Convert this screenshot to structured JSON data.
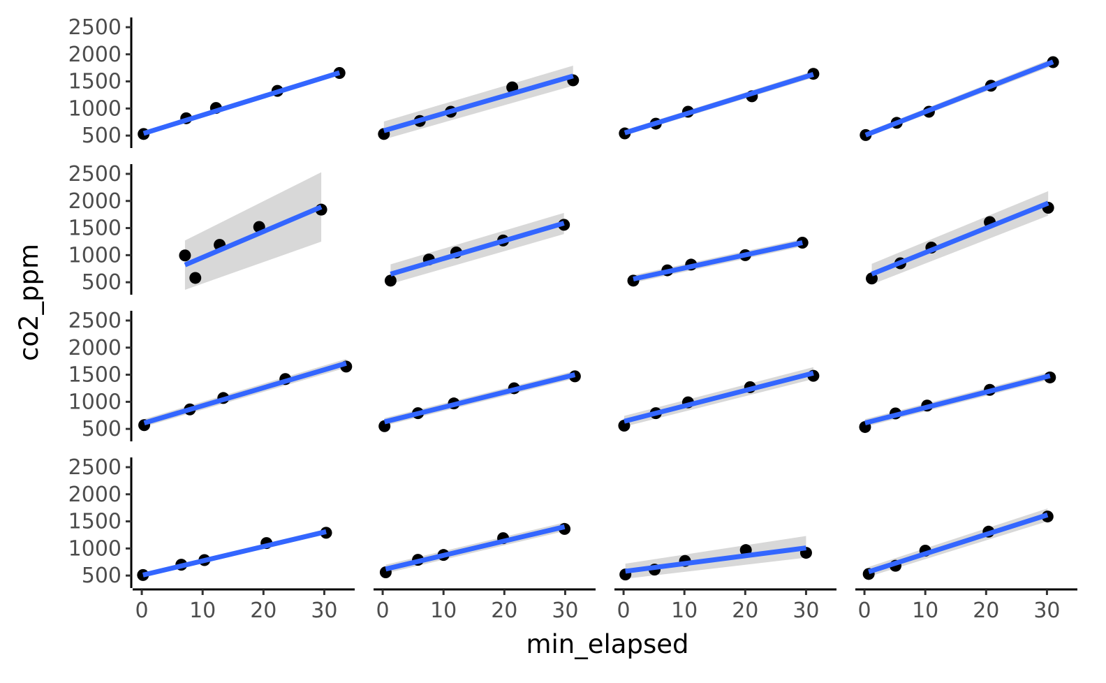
{
  "chart_data": {
    "type": "scatter",
    "layout": "facet-grid",
    "rows": 4,
    "cols": 4,
    "xlabel": "min_elapsed",
    "ylabel": "co2_ppm",
    "xlim": [
      -1.5,
      35
    ],
    "ylim": [
      270,
      2680
    ],
    "x_ticks": [
      0,
      10,
      20,
      30
    ],
    "y_ticks": [
      500,
      1000,
      1500,
      2000,
      2500
    ],
    "grid": false,
    "legend": "none",
    "point_color": "#000000",
    "fit_color": "#3366ff",
    "band_color": "#bebebe",
    "panels": [
      {
        "points": [
          [
            0.3,
            530
          ],
          [
            7.3,
            820
          ],
          [
            12.2,
            1010
          ],
          [
            22.3,
            1325
          ],
          [
            32.5,
            1655
          ]
        ],
        "fit": [
          [
            0.3,
            540
          ],
          [
            32.5,
            1660
          ]
        ],
        "band": [
          [
            0.3,
            510,
            570
          ],
          [
            32.5,
            1620,
            1700
          ]
        ]
      },
      {
        "points": [
          [
            0.2,
            530
          ],
          [
            6.1,
            770
          ],
          [
            11.2,
            940
          ],
          [
            21.3,
            1390
          ],
          [
            31.3,
            1520
          ]
        ],
        "fit": [
          [
            0.2,
            590
          ],
          [
            31.3,
            1600
          ]
        ],
        "band": [
          [
            0.2,
            430,
            760
          ],
          [
            31.3,
            1420,
            1790
          ]
        ]
      },
      {
        "points": [
          [
            0.2,
            540
          ],
          [
            5.3,
            720
          ],
          [
            10.6,
            940
          ],
          [
            21.1,
            1225
          ],
          [
            31.2,
            1640
          ]
        ],
        "fit": [
          [
            0.2,
            550
          ],
          [
            31.2,
            1630
          ]
        ],
        "band": [
          [
            0.2,
            500,
            600
          ],
          [
            31.2,
            1570,
            1690
          ]
        ]
      },
      {
        "points": [
          [
            0.2,
            510
          ],
          [
            5.3,
            735
          ],
          [
            10.6,
            940
          ],
          [
            20.8,
            1420
          ],
          [
            31.0,
            1855
          ]
        ],
        "fit": [
          [
            0.2,
            510
          ],
          [
            31.0,
            1860
          ]
        ],
        "band": [
          [
            0.2,
            460,
            560
          ],
          [
            31.0,
            1790,
            1930
          ]
        ]
      },
      {
        "points": [
          [
            7.1,
            995
          ],
          [
            8.8,
            580
          ],
          [
            12.8,
            1190
          ],
          [
            19.3,
            1520
          ],
          [
            29.5,
            1840
          ]
        ],
        "fit": [
          [
            7.1,
            820
          ],
          [
            29.5,
            1890
          ]
        ],
        "band": [
          [
            7.1,
            360,
            1270
          ],
          [
            29.5,
            1250,
            2530
          ]
        ]
      },
      {
        "points": [
          [
            1.3,
            530
          ],
          [
            7.6,
            920
          ],
          [
            12.1,
            1050
          ],
          [
            19.8,
            1270
          ],
          [
            29.8,
            1560
          ]
        ],
        "fit": [
          [
            1.3,
            650
          ],
          [
            29.8,
            1590
          ]
        ],
        "band": [
          [
            1.3,
            470,
            830
          ],
          [
            29.8,
            1390,
            1780
          ]
        ]
      },
      {
        "points": [
          [
            1.6,
            530
          ],
          [
            7.2,
            720
          ],
          [
            11.1,
            825
          ],
          [
            20.0,
            1000
          ],
          [
            29.4,
            1230
          ]
        ],
        "fit": [
          [
            1.6,
            560
          ],
          [
            29.4,
            1230
          ]
        ],
        "band": [
          [
            1.6,
            490,
            630
          ],
          [
            29.4,
            1160,
            1300
          ]
        ]
      },
      {
        "points": [
          [
            1.2,
            570
          ],
          [
            5.9,
            850
          ],
          [
            11.0,
            1140
          ],
          [
            20.6,
            1610
          ],
          [
            30.2,
            1875
          ]
        ],
        "fit": [
          [
            1.2,
            650
          ],
          [
            30.2,
            1960
          ]
        ],
        "band": [
          [
            1.2,
            460,
            840
          ],
          [
            30.2,
            1730,
            2180
          ]
        ]
      },
      {
        "points": [
          [
            0.4,
            570
          ],
          [
            7.9,
            860
          ],
          [
            13.4,
            1070
          ],
          [
            23.6,
            1420
          ],
          [
            33.6,
            1650
          ]
        ],
        "fit": [
          [
            0.4,
            610
          ],
          [
            33.6,
            1710
          ]
        ],
        "band": [
          [
            0.4,
            540,
            680
          ],
          [
            33.6,
            1630,
            1790
          ]
        ]
      },
      {
        "points": [
          [
            0.3,
            550
          ],
          [
            5.8,
            790
          ],
          [
            11.7,
            970
          ],
          [
            21.6,
            1250
          ],
          [
            31.6,
            1470
          ]
        ],
        "fit": [
          [
            0.3,
            630
          ],
          [
            31.6,
            1500
          ]
        ],
        "band": [
          [
            0.3,
            560,
            700
          ],
          [
            31.6,
            1430,
            1570
          ]
        ]
      },
      {
        "points": [
          [
            0.1,
            560
          ],
          [
            5.3,
            790
          ],
          [
            10.6,
            990
          ],
          [
            20.8,
            1270
          ],
          [
            31.2,
            1480
          ]
        ],
        "fit": [
          [
            0.1,
            640
          ],
          [
            31.2,
            1530
          ]
        ],
        "band": [
          [
            0.1,
            540,
            740
          ],
          [
            31.2,
            1420,
            1640
          ]
        ]
      },
      {
        "points": [
          [
            0.1,
            535
          ],
          [
            5.1,
            785
          ],
          [
            10.3,
            930
          ],
          [
            20.6,
            1220
          ],
          [
            30.5,
            1450
          ]
        ],
        "fit": [
          [
            0.1,
            610
          ],
          [
            30.5,
            1480
          ]
        ],
        "band": [
          [
            0.1,
            540,
            680
          ],
          [
            30.5,
            1410,
            1550
          ]
        ]
      },
      {
        "points": [
          [
            0.2,
            510
          ],
          [
            6.5,
            700
          ],
          [
            10.3,
            785
          ],
          [
            20.5,
            1100
          ],
          [
            30.3,
            1290
          ]
        ],
        "fit": [
          [
            0.2,
            510
          ],
          [
            30.3,
            1310
          ]
        ],
        "band": [
          [
            0.2,
            470,
            550
          ],
          [
            30.3,
            1260,
            1360
          ]
        ]
      },
      {
        "points": [
          [
            0.5,
            560
          ],
          [
            5.8,
            790
          ],
          [
            10.0,
            880
          ],
          [
            19.8,
            1190
          ],
          [
            29.9,
            1360
          ]
        ],
        "fit": [
          [
            0.5,
            620
          ],
          [
            29.9,
            1400
          ]
        ],
        "band": [
          [
            0.5,
            540,
            700
          ],
          [
            29.9,
            1320,
            1480
          ]
        ]
      },
      {
        "points": [
          [
            0.3,
            520
          ],
          [
            5.1,
            610
          ],
          [
            10.1,
            770
          ],
          [
            20.1,
            970
          ],
          [
            30.0,
            920
          ]
        ],
        "fit": [
          [
            0.3,
            580
          ],
          [
            30.0,
            1010
          ]
        ],
        "band": [
          [
            0.3,
            440,
            720
          ],
          [
            30.0,
            830,
            1230
          ]
        ]
      },
      {
        "points": [
          [
            0.7,
            530
          ],
          [
            5.1,
            680
          ],
          [
            10.0,
            960
          ],
          [
            20.4,
            1310
          ],
          [
            30.1,
            1590
          ]
        ],
        "fit": [
          [
            0.7,
            570
          ],
          [
            30.1,
            1620
          ]
        ],
        "band": [
          [
            0.7,
            480,
            660
          ],
          [
            30.1,
            1500,
            1740
          ]
        ]
      }
    ]
  }
}
